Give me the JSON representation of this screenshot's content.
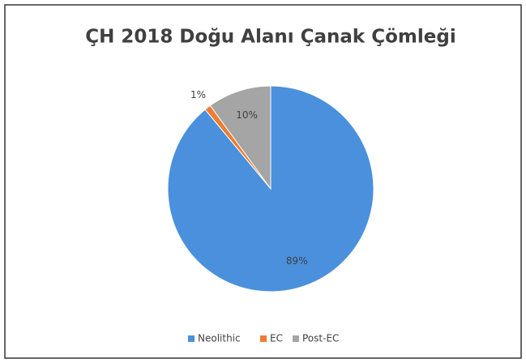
{
  "chart_data": {
    "type": "pie",
    "title": "ÇH 2018 Doğu Alanı Çanak Çömleği",
    "categories": [
      "Neolithic",
      "EC",
      "Post-EC"
    ],
    "values": [
      89,
      1,
      10
    ],
    "value_labels": [
      "89%",
      "1%",
      "10%"
    ],
    "colors": [
      "#4a90dc",
      "#ed7d31",
      "#a5a5a5"
    ],
    "legend": "bottom"
  }
}
